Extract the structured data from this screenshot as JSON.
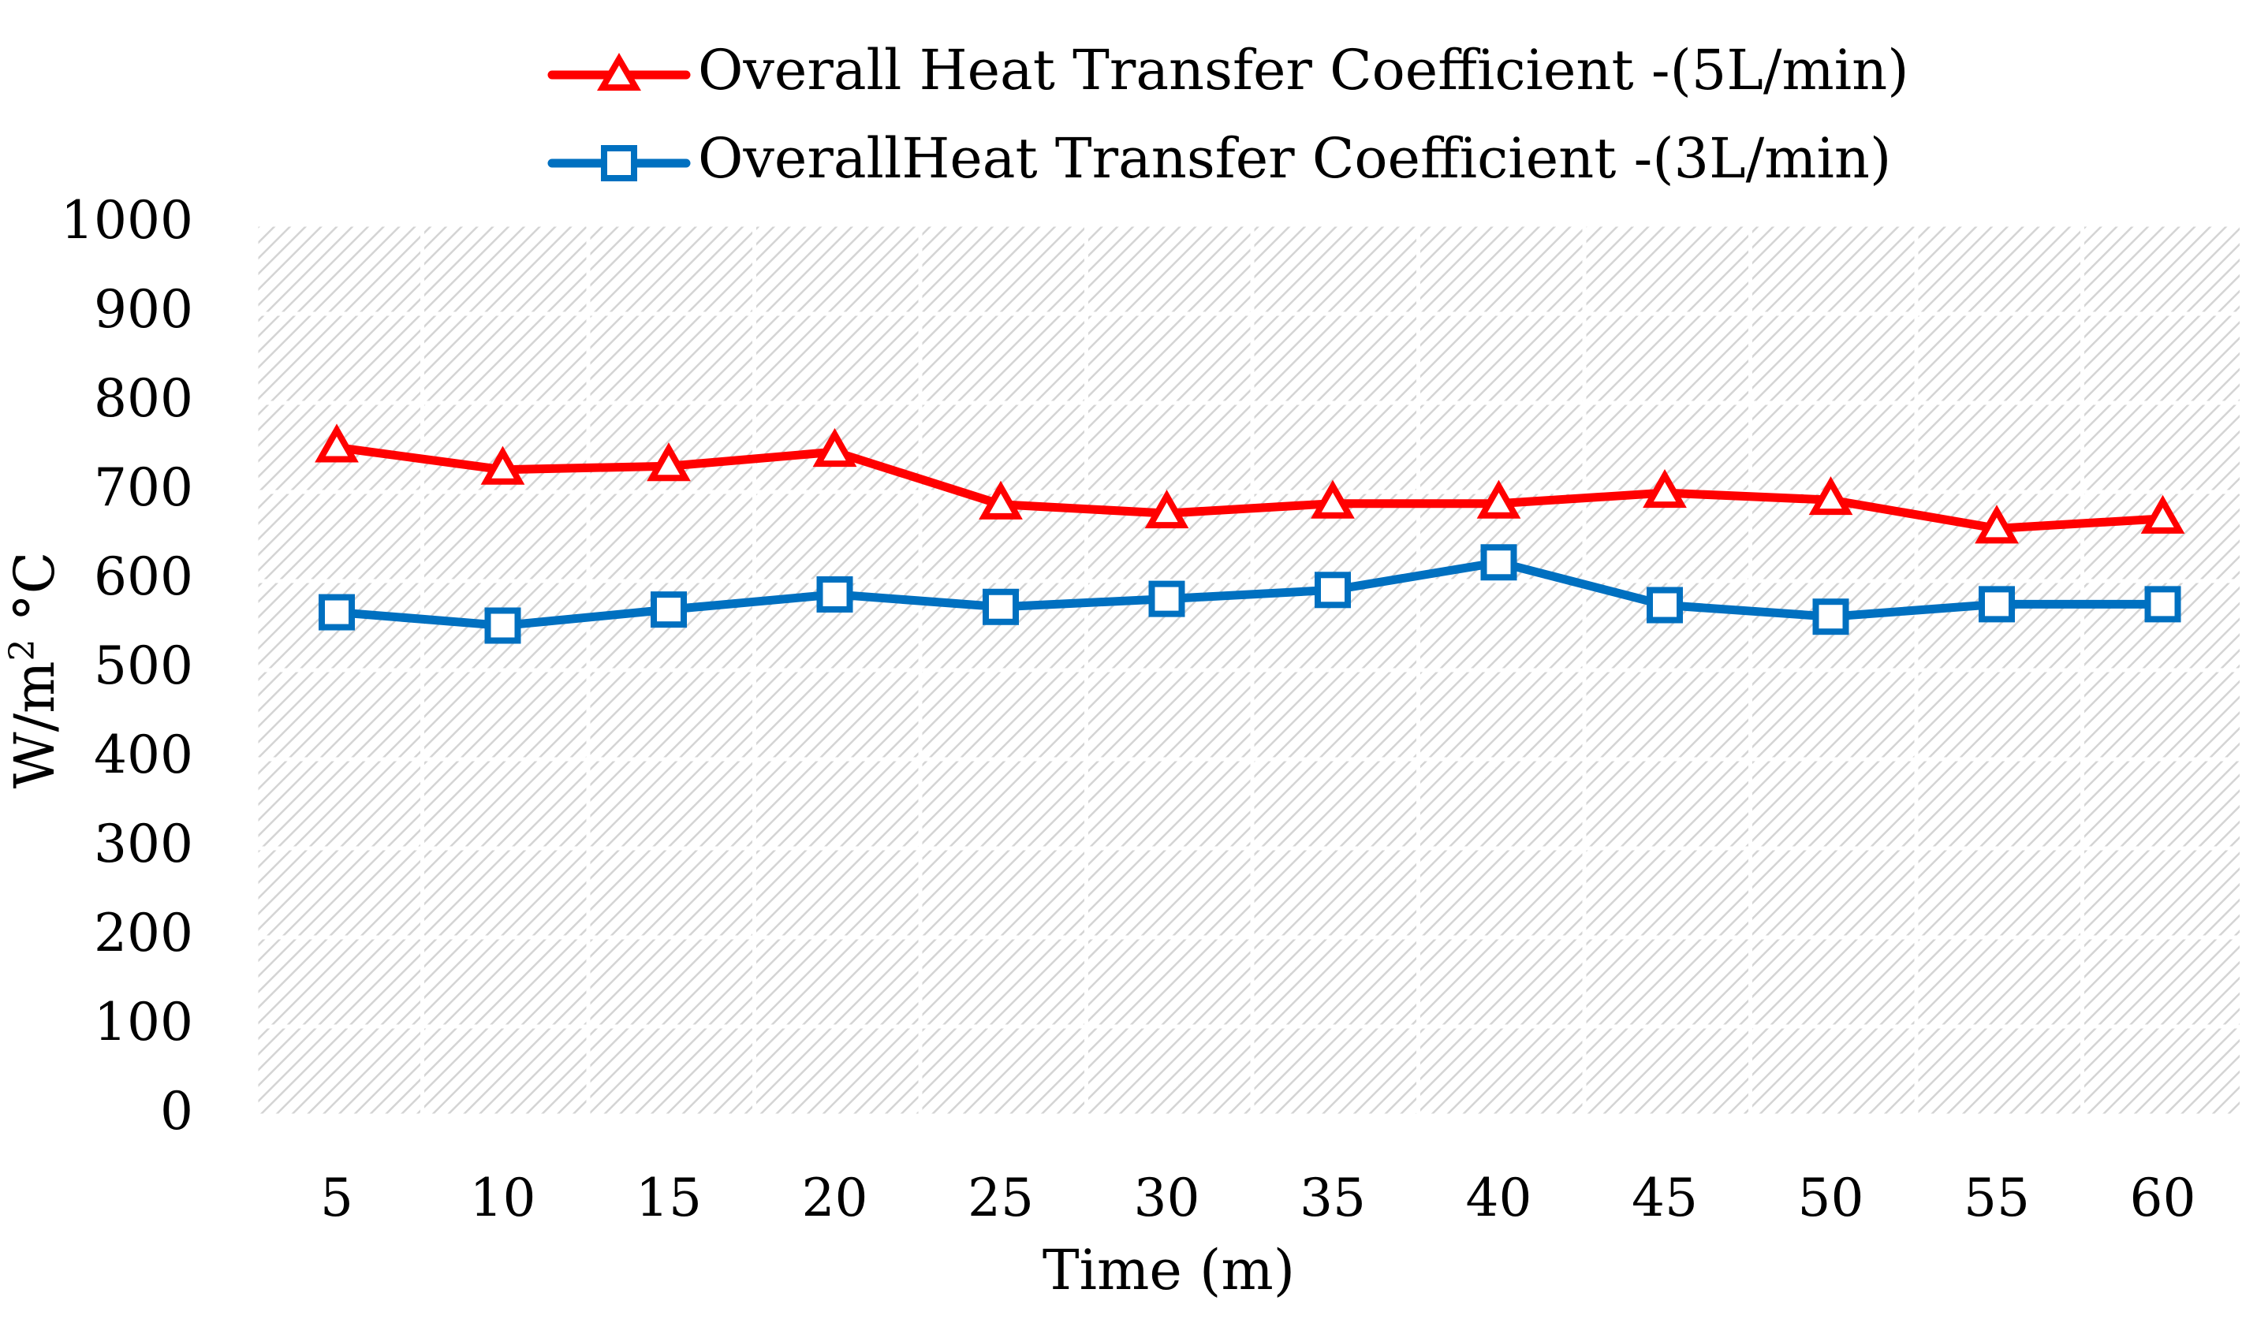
{
  "chart_data": {
    "type": "line",
    "title": "",
    "xlabel": "Time (m)",
    "ylabel": "W/m",
    "ylabel_sup": "2",
    "ylabel_unit": " °C",
    "ylim": [
      0,
      1000
    ],
    "yticks": [
      0,
      100,
      200,
      300,
      400,
      500,
      600,
      700,
      800,
      900,
      1000
    ],
    "categories": [
      "5",
      "10",
      "15",
      "20",
      "25",
      "30",
      "35",
      "40",
      "45",
      "50",
      "55",
      "60"
    ],
    "grid": true,
    "legend_position": "top",
    "series": [
      {
        "name": "Overall Heat Transfer Coefficient -(5L/min)",
        "color": "#ff0000",
        "marker": "triangle",
        "values": [
          750,
          725,
          729,
          745,
          686,
          676,
          687,
          687,
          699,
          691,
          659,
          670
        ]
      },
      {
        "name": "OverallHeat Transfer Coefficient -(3L/min)",
        "color": "#0070c0",
        "marker": "square",
        "values": [
          565,
          550,
          568,
          585,
          571,
          580,
          590,
          621,
          573,
          560,
          574,
          574
        ]
      }
    ]
  }
}
